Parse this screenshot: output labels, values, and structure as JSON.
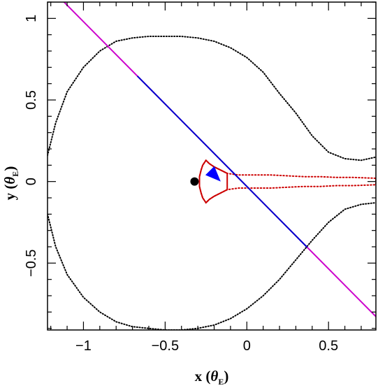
{
  "chart_data": {
    "type": "line",
    "title": "",
    "xlabel": "x",
    "ylabel": "y",
    "label_unit_symbol": "θ",
    "label_unit_subscript": "E",
    "xlim": [
      -1.22,
      0.79
    ],
    "ylim": [
      -0.91,
      1.1
    ],
    "x_ticks": [
      -1,
      -0.5,
      0,
      0.5
    ],
    "x_tick_labels": [
      "−1",
      "−0.5",
      "0",
      "0.5"
    ],
    "y_ticks": [
      -0.5,
      0,
      0.5,
      1
    ],
    "y_tick_labels": [
      "−0.5",
      "0",
      "0.5",
      "1"
    ],
    "grid": false,
    "legend": "none",
    "colors": {
      "critical_curve": "#000000",
      "caustic": "#cc0000",
      "trajectory_inner": "#0000cc",
      "trajectory_outer": "#cc00cc",
      "arrow": "#0000ff",
      "lens": "#000000"
    },
    "lens_point": {
      "x": -0.32,
      "y": 0.0
    },
    "trajectory": {
      "slope": -1.01,
      "intercept": -0.03,
      "blue_x_range": [
        -0.67,
        0.37
      ],
      "arrow_tip": {
        "x": -0.16,
        "y": 0.0
      }
    },
    "critical_curve_upper": [
      [
        -1.22,
        0.16
      ],
      [
        -1.17,
        0.36
      ],
      [
        -1.1,
        0.55
      ],
      [
        -1.0,
        0.7
      ],
      [
        -0.9,
        0.8
      ],
      [
        -0.8,
        0.86
      ],
      [
        -0.7,
        0.88
      ],
      [
        -0.6,
        0.89
      ],
      [
        -0.5,
        0.89
      ],
      [
        -0.4,
        0.89
      ],
      [
        -0.3,
        0.88
      ],
      [
        -0.2,
        0.86
      ],
      [
        -0.1,
        0.82
      ],
      [
        0.0,
        0.76
      ],
      [
        0.1,
        0.67
      ],
      [
        0.2,
        0.54
      ],
      [
        0.3,
        0.42
      ],
      [
        0.4,
        0.28
      ],
      [
        0.5,
        0.18
      ],
      [
        0.6,
        0.14
      ],
      [
        0.7,
        0.13
      ],
      [
        0.79,
        0.15
      ]
    ],
    "critical_curve_lower": [
      [
        -1.22,
        -0.2
      ],
      [
        -1.17,
        -0.4
      ],
      [
        -1.1,
        -0.57
      ],
      [
        -1.0,
        -0.71
      ],
      [
        -0.9,
        -0.8
      ],
      [
        -0.8,
        -0.86
      ],
      [
        -0.7,
        -0.89
      ],
      [
        -0.6,
        -0.9
      ],
      [
        -0.5,
        -0.91
      ],
      [
        -0.4,
        -0.91
      ],
      [
        -0.3,
        -0.9
      ],
      [
        -0.2,
        -0.88
      ],
      [
        -0.1,
        -0.84
      ],
      [
        0.0,
        -0.78
      ],
      [
        0.1,
        -0.7
      ],
      [
        0.2,
        -0.6
      ],
      [
        0.3,
        -0.48
      ],
      [
        0.4,
        -0.36
      ],
      [
        0.5,
        -0.25
      ],
      [
        0.6,
        -0.17
      ],
      [
        0.7,
        -0.14
      ],
      [
        0.79,
        -0.13
      ]
    ],
    "caustic_curve": [
      [
        -0.25,
        0.13
      ],
      [
        -0.27,
        0.1
      ],
      [
        -0.28,
        0.07
      ],
      [
        -0.29,
        0.03
      ],
      [
        -0.29,
        0.0
      ],
      [
        -0.29,
        -0.03
      ],
      [
        -0.28,
        -0.07
      ],
      [
        -0.27,
        -0.1
      ],
      [
        -0.25,
        -0.13
      ],
      [
        -0.23,
        -0.11
      ],
      [
        -0.2,
        -0.09
      ],
      [
        -0.16,
        -0.07
      ],
      [
        -0.12,
        -0.05
      ],
      [
        -0.05,
        -0.04
      ],
      [
        0.05,
        -0.04
      ],
      [
        0.15,
        -0.04
      ],
      [
        0.25,
        -0.035
      ],
      [
        0.35,
        -0.03
      ],
      [
        0.45,
        -0.03
      ],
      [
        0.55,
        -0.025
      ],
      [
        0.65,
        -0.025
      ],
      [
        0.79,
        -0.02
      ],
      [
        0.79,
        0.02
      ],
      [
        0.65,
        0.025
      ],
      [
        0.55,
        0.025
      ],
      [
        0.45,
        0.03
      ],
      [
        0.35,
        0.03
      ],
      [
        0.25,
        0.035
      ],
      [
        0.15,
        0.04
      ],
      [
        0.05,
        0.04
      ],
      [
        -0.05,
        0.04
      ],
      [
        -0.12,
        0.05
      ],
      [
        -0.16,
        0.07
      ],
      [
        -0.2,
        0.09
      ],
      [
        -0.23,
        0.11
      ],
      [
        -0.25,
        0.13
      ]
    ]
  }
}
